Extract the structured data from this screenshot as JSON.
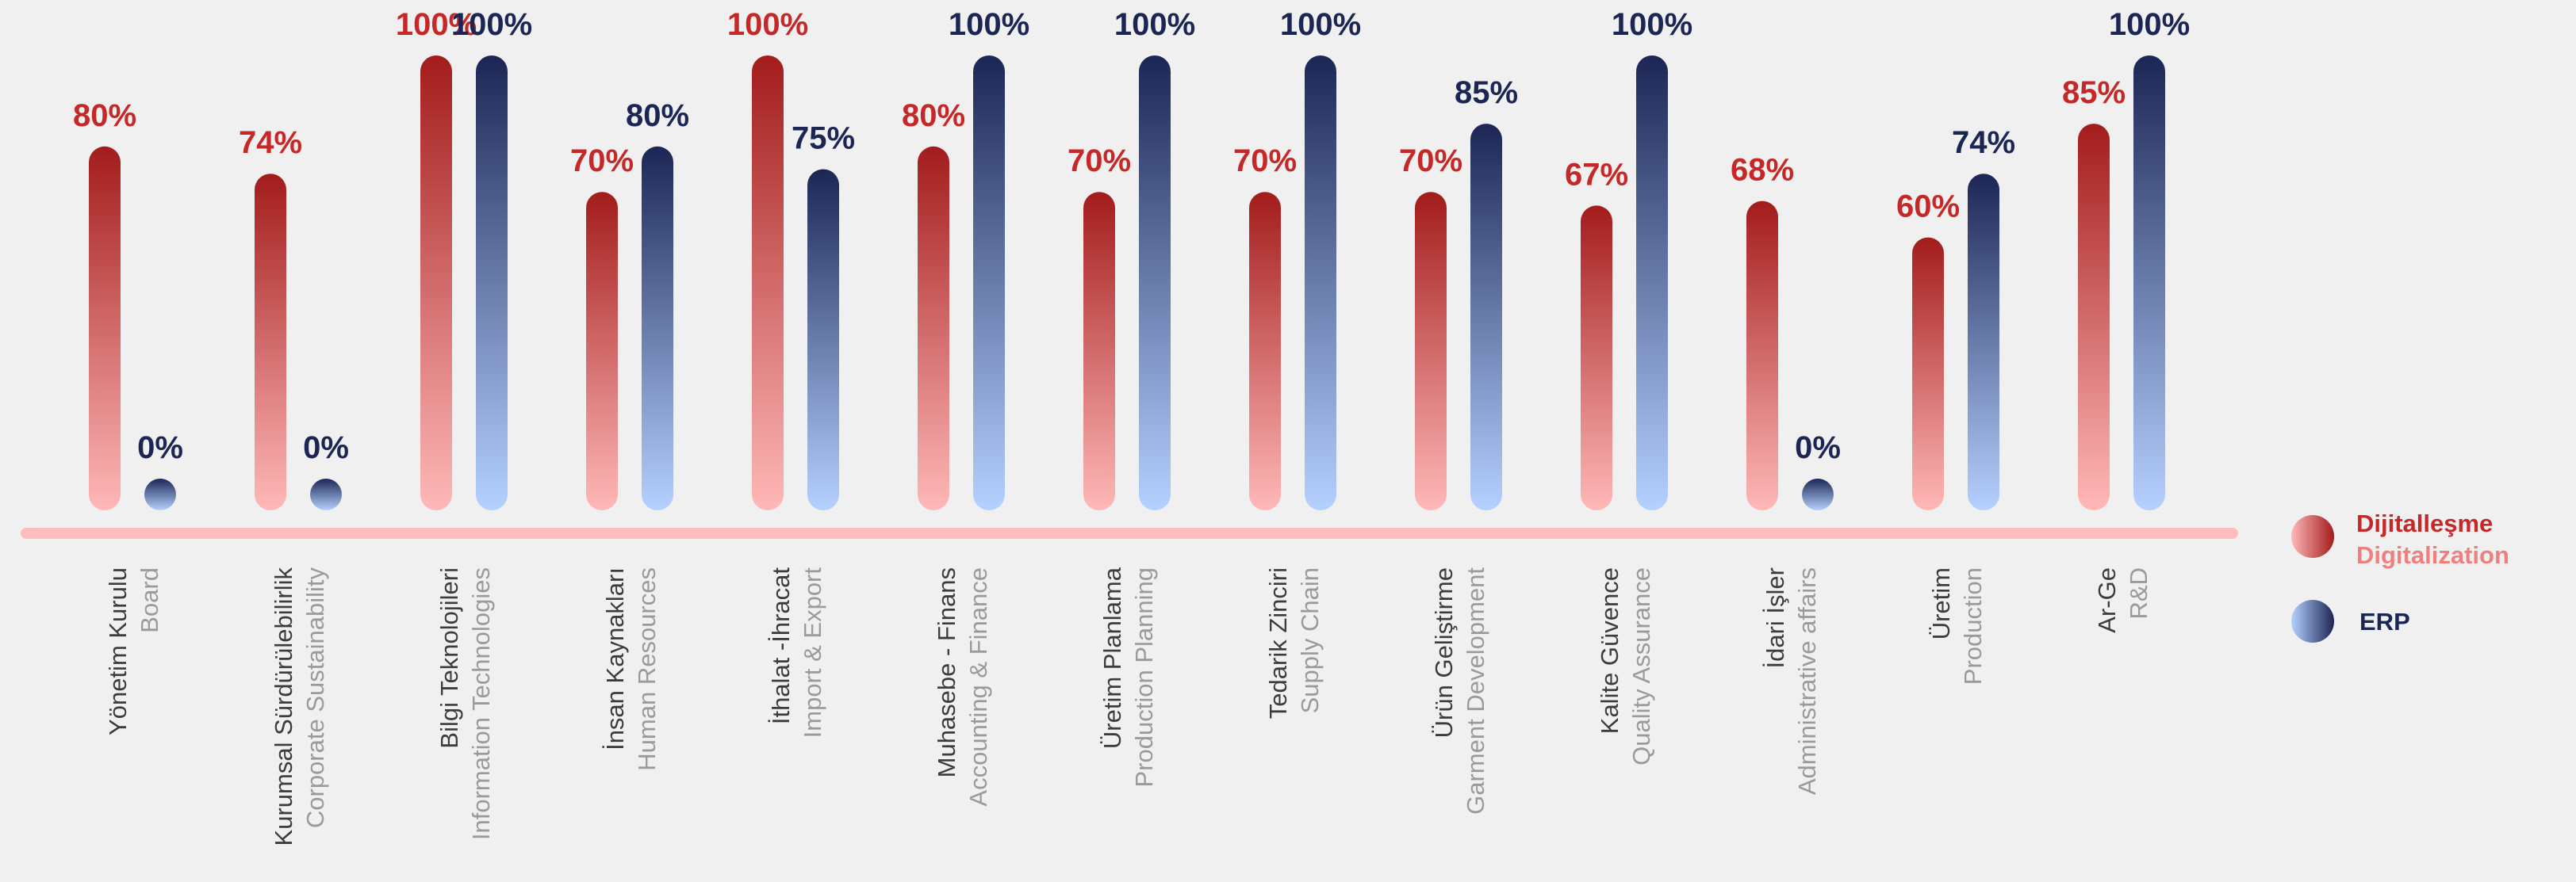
{
  "chart_data": {
    "type": "bar",
    "ylim": [
      0,
      100
    ],
    "grid": false,
    "legend_position": "right",
    "categories": [
      {
        "primary": "Yönetim Kurulu",
        "secondary": "Board"
      },
      {
        "primary": "Kurumsal Sürdürülebilirlik",
        "secondary": "Corporate Sustainability"
      },
      {
        "primary": "Bilgi Teknolojileri",
        "secondary": "Information Technologies"
      },
      {
        "primary": "İnsan Kaynakları",
        "secondary": "Human Resources"
      },
      {
        "primary": "İthalat -İhracat",
        "secondary": "Import & Export"
      },
      {
        "primary": "Muhasebe - Finans",
        "secondary": "Accounting & Finance"
      },
      {
        "primary": "Üretim Planlama",
        "secondary": "Production Planning"
      },
      {
        "primary": "Tedarik Zinciri",
        "secondary": "Supply Chain"
      },
      {
        "primary": "Ürün Geliştirme",
        "secondary": "Garment Development"
      },
      {
        "primary": "Kalite Güvence",
        "secondary": "Quality Assurance"
      },
      {
        "primary": "İdari İşler",
        "secondary": "Administrative affairs"
      },
      {
        "primary": "Üretim",
        "secondary": "Production"
      },
      {
        "primary": "Ar-Ge",
        "secondary": "R&D"
      }
    ],
    "series": [
      {
        "name": "Dijitalleşme",
        "name_secondary": "Digitalization",
        "values": [
          80,
          74,
          100,
          70,
          100,
          80,
          70,
          70,
          70,
          67,
          68,
          60,
          85
        ],
        "labels": [
          "80%",
          "74%",
          "100%",
          "70%",
          "100%",
          "80%",
          "70%",
          "70%",
          "70%",
          "67%",
          "68%",
          "60%",
          "85%"
        ],
        "color_top": "#a31c1c",
        "color_bottom": "#ffb8b8",
        "label_color": "#c62828"
      },
      {
        "name": "ERP",
        "values": [
          0,
          0,
          100,
          80,
          75,
          100,
          100,
          100,
          85,
          100,
          0,
          74,
          100
        ],
        "labels": [
          "0%",
          "0%",
          "100%",
          "80%",
          "75%",
          "100%",
          "100%",
          "100%",
          "85%",
          "100%",
          "0%",
          "74%",
          "100%"
        ],
        "color_top": "#1c2655",
        "color_bottom": "#b5d1ff",
        "label_color": "#1c2655"
      }
    ]
  },
  "colors": {
    "background": "#f0f0f0",
    "baseline": "#ffbcbc",
    "legend_secondary": "#f08080"
  }
}
